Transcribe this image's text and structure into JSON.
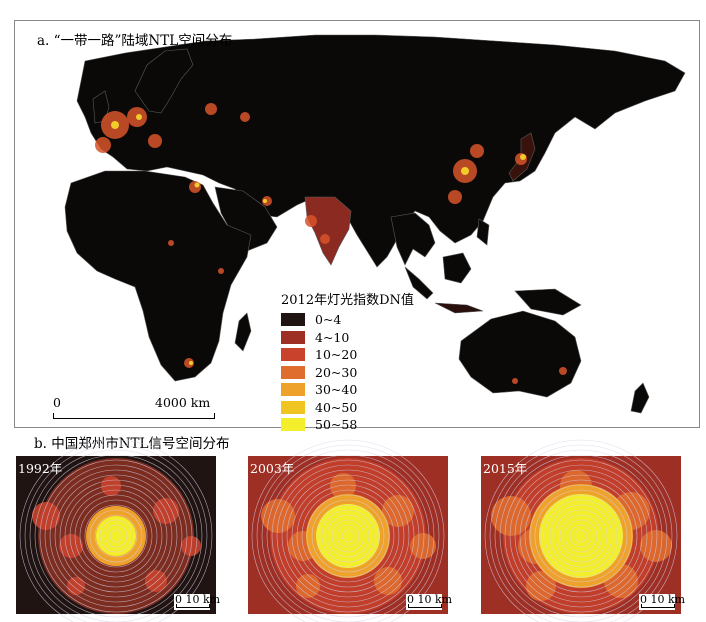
{
  "panel_a": {
    "title": "a. “一带一路”陆域NTL空间分布",
    "legend": {
      "title": "2012年灯光指数DN值",
      "items": [
        {
          "label": "0~4",
          "color": "#1f1412"
        },
        {
          "label": "4~10",
          "color": "#9e2f24"
        },
        {
          "label": "10~20",
          "color": "#c8422c"
        },
        {
          "label": "20~30",
          "color": "#df6d2e"
        },
        {
          "label": "30~40",
          "color": "#eea22b"
        },
        {
          "label": "40~50",
          "color": "#f0c421"
        },
        {
          "label": "50~58",
          "color": "#f4ef2c"
        }
      ]
    },
    "scale": {
      "zero": "0",
      "distance": "4000 km"
    }
  },
  "panel_b": {
    "title": "b. 中国郑州市NTL信号空间分布",
    "maps": [
      {
        "year": "1992年",
        "scale": "0 10 km"
      },
      {
        "year": "2003年",
        "scale": "0 10 km"
      },
      {
        "year": "2015年",
        "scale": "0 10 km"
      }
    ]
  },
  "colors": {
    "ocean": "#ffffff",
    "land": "#0b0908",
    "border": "#6e6e6e",
    "frame": "#8a8a8a"
  }
}
